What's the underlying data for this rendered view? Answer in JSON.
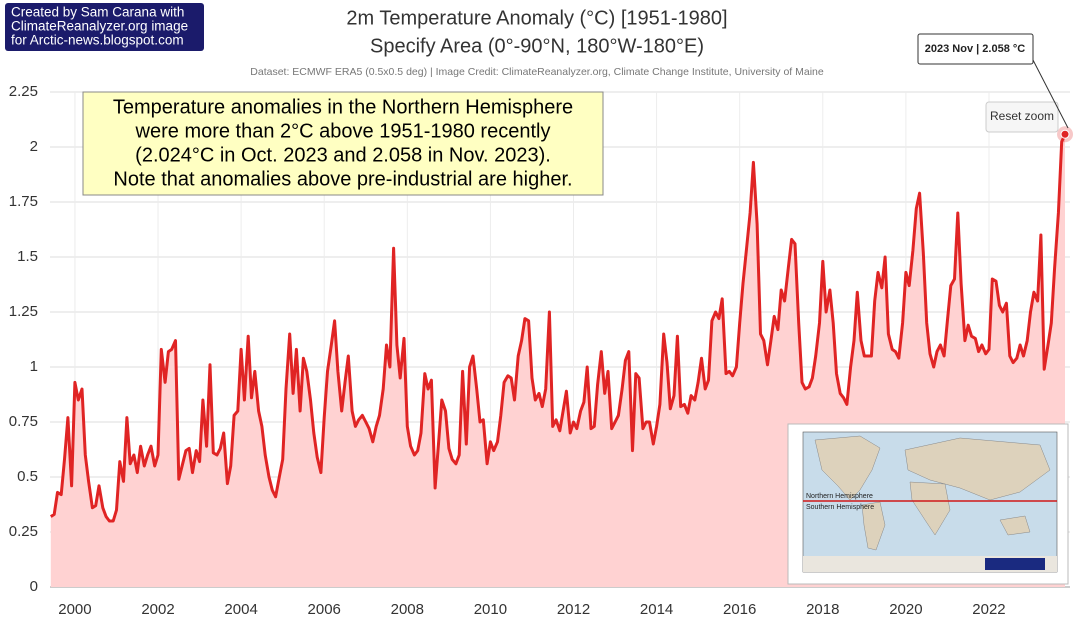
{
  "chart_data": {
    "type": "area",
    "credit_box": [
      "Created by Sam Carana with",
      "ClimateReanalyzer.org image",
      "for Arctic-news.blogspot.com"
    ],
    "title": "2m Temperature Anomaly (°C) [1951-1980]",
    "subtitle": "Specify Area (0°-90°N, 180°W-180°E)",
    "source": "Dataset: ECMWF ERA5 (0.5x0.5 deg) | Image Credit: ClimateReanalyzer.org, Climate Change Institute, University of Maine",
    "annotation": [
      "Temperature anomalies in the Northern Hemisphere",
      "were more than 2°C above 1951-1980 recently",
      "(2.024°C in Oct. 2023 and 2.058 in Nov. 2023).",
      "Note that anomalies above pre-industrial are higher."
    ],
    "tooltip": "2023 Nov | 2.058 °C",
    "button": "Reset zoom",
    "inset_labels": [
      "Northern Hemisphere",
      "Southern Hemisphere"
    ],
    "color": "#e02424",
    "fill": "#ffd2d2",
    "grid": true,
    "xlim": [
      1999.4,
      2023.95
    ],
    "xticks": [
      2000,
      2002,
      2004,
      2006,
      2008,
      2010,
      2012,
      2014,
      2016,
      2018,
      2020,
      2022
    ],
    "ylim": [
      0,
      2.25
    ],
    "yticks": [
      0,
      0.25,
      0.5,
      0.75,
      1,
      1.25,
      1.5,
      1.75,
      2,
      2.25
    ],
    "x": [
      1999.42,
      1999.5,
      1999.58,
      1999.67,
      1999.75,
      1999.83,
      1999.92,
      2000,
      2000.08,
      2000.17,
      2000.25,
      2000.33,
      2000.42,
      2000.5,
      2000.58,
      2000.67,
      2000.75,
      2000.83,
      2000.92,
      2001,
      2001.08,
      2001.17,
      2001.25,
      2001.33,
      2001.42,
      2001.5,
      2001.58,
      2001.67,
      2001.75,
      2001.83,
      2001.92,
      2002,
      2002.08,
      2002.17,
      2002.25,
      2002.33,
      2002.42,
      2002.5,
      2002.58,
      2002.67,
      2002.75,
      2002.83,
      2002.92,
      2003,
      2003.08,
      2003.17,
      2003.25,
      2003.33,
      2003.42,
      2003.5,
      2003.58,
      2003.67,
      2003.75,
      2003.83,
      2003.92,
      2004,
      2004.08,
      2004.17,
      2004.25,
      2004.33,
      2004.42,
      2004.5,
      2004.58,
      2004.67,
      2004.75,
      2004.83,
      2004.92,
      2005,
      2005.08,
      2005.17,
      2005.25,
      2005.33,
      2005.42,
      2005.5,
      2005.58,
      2005.67,
      2005.75,
      2005.83,
      2005.92,
      2006,
      2006.08,
      2006.17,
      2006.25,
      2006.33,
      2006.42,
      2006.5,
      2006.58,
      2006.67,
      2006.75,
      2006.83,
      2006.92,
      2007,
      2007.08,
      2007.17,
      2007.25,
      2007.33,
      2007.42,
      2007.5,
      2007.58,
      2007.67,
      2007.75,
      2007.83,
      2007.92,
      2008,
      2008.08,
      2008.17,
      2008.25,
      2008.33,
      2008.42,
      2008.5,
      2008.58,
      2008.67,
      2008.75,
      2008.83,
      2008.92,
      2009,
      2009.08,
      2009.17,
      2009.25,
      2009.33,
      2009.42,
      2009.5,
      2009.58,
      2009.67,
      2009.75,
      2009.83,
      2009.92,
      2010,
      2010.08,
      2010.17,
      2010.25,
      2010.33,
      2010.42,
      2010.5,
      2010.58,
      2010.67,
      2010.75,
      2010.83,
      2010.92,
      2011,
      2011.08,
      2011.17,
      2011.25,
      2011.33,
      2011.42,
      2011.5,
      2011.58,
      2011.67,
      2011.75,
      2011.83,
      2011.92,
      2012,
      2012.08,
      2012.17,
      2012.25,
      2012.33,
      2012.42,
      2012.5,
      2012.58,
      2012.67,
      2012.75,
      2012.83,
      2012.92,
      2013,
      2013.08,
      2013.17,
      2013.25,
      2013.33,
      2013.42,
      2013.5,
      2013.58,
      2013.67,
      2013.75,
      2013.83,
      2013.92,
      2014,
      2014.08,
      2014.17,
      2014.25,
      2014.33,
      2014.42,
      2014.5,
      2014.58,
      2014.67,
      2014.75,
      2014.83,
      2014.92,
      2015,
      2015.08,
      2015.17,
      2015.25,
      2015.33,
      2015.42,
      2015.5,
      2015.58,
      2015.67,
      2015.75,
      2015.83,
      2015.92,
      2016,
      2016.08,
      2016.17,
      2016.25,
      2016.33,
      2016.42,
      2016.5,
      2016.58,
      2016.67,
      2016.75,
      2016.83,
      2016.92,
      2017,
      2017.08,
      2017.17,
      2017.25,
      2017.33,
      2017.42,
      2017.5,
      2017.58,
      2017.67,
      2017.75,
      2017.83,
      2017.92,
      2018,
      2018.08,
      2018.17,
      2018.25,
      2018.33,
      2018.42,
      2018.5,
      2018.58,
      2018.67,
      2018.75,
      2018.83,
      2018.92,
      2019,
      2019.08,
      2019.17,
      2019.25,
      2019.33,
      2019.42,
      2019.5,
      2019.58,
      2019.67,
      2019.75,
      2019.83,
      2019.92,
      2020,
      2020.08,
      2020.17,
      2020.25,
      2020.33,
      2020.42,
      2020.5,
      2020.58,
      2020.67,
      2020.75,
      2020.83,
      2020.92,
      2021,
      2021.08,
      2021.17,
      2021.25,
      2021.33,
      2021.42,
      2021.5,
      2021.58,
      2021.67,
      2021.75,
      2021.83,
      2021.92,
      2022,
      2022.08,
      2022.17,
      2022.25,
      2022.33,
      2022.42,
      2022.5,
      2022.58,
      2022.67,
      2022.75,
      2022.83,
      2022.92,
      2023,
      2023.08,
      2023.17,
      2023.25,
      2023.33,
      2023.42,
      2023.5,
      2023.58,
      2023.67,
      2023.75,
      2023.83
    ],
    "values": [
      0.32,
      0.33,
      0.43,
      0.42,
      0.58,
      0.77,
      0.46,
      0.93,
      0.85,
      0.9,
      0.6,
      0.48,
      0.36,
      0.37,
      0.46,
      0.36,
      0.32,
      0.3,
      0.3,
      0.35,
      0.57,
      0.48,
      0.77,
      0.56,
      0.6,
      0.52,
      0.64,
      0.55,
      0.6,
      0.64,
      0.55,
      0.6,
      1.08,
      0.93,
      1.07,
      1.08,
      1.12,
      0.49,
      0.55,
      0.62,
      0.63,
      0.52,
      0.62,
      0.57,
      0.85,
      0.64,
      1.01,
      0.61,
      0.6,
      0.63,
      0.7,
      0.47,
      0.55,
      0.78,
      0.8,
      1.08,
      0.85,
      1.14,
      0.86,
      0.98,
      0.8,
      0.73,
      0.6,
      0.5,
      0.44,
      0.41,
      0.5,
      0.58,
      0.9,
      1.15,
      0.88,
      1.08,
      0.8,
      1.04,
      0.98,
      0.85,
      0.7,
      0.59,
      0.52,
      0.77,
      0.98,
      1.1,
      1.21,
      0.98,
      0.8,
      0.93,
      1.05,
      0.8,
      0.73,
      0.76,
      0.78,
      0.75,
      0.72,
      0.66,
      0.73,
      0.78,
      0.9,
      1.1,
      1.0,
      1.54,
      1.1,
      0.95,
      1.13,
      0.73,
      0.64,
      0.6,
      0.62,
      0.7,
      0.97,
      0.9,
      0.94,
      0.45,
      0.65,
      0.85,
      0.8,
      0.63,
      0.58,
      0.56,
      0.6,
      0.98,
      0.65,
      1.0,
      1.05,
      0.9,
      0.75,
      0.76,
      0.56,
      0.66,
      0.62,
      0.66,
      0.78,
      0.93,
      0.96,
      0.95,
      0.85,
      1.05,
      1.12,
      1.22,
      1.21,
      0.95,
      0.85,
      0.88,
      0.82,
      0.9,
      1.25,
      0.73,
      0.76,
      0.71,
      0.8,
      0.89,
      0.7,
      0.75,
      0.72,
      0.8,
      0.84,
      1.0,
      0.72,
      0.73,
      0.92,
      1.07,
      0.88,
      0.98,
      0.72,
      0.75,
      0.78,
      0.9,
      1.03,
      1.07,
      0.62,
      0.97,
      0.95,
      0.72,
      0.75,
      0.75,
      0.65,
      0.73,
      0.83,
      1.15,
      1.02,
      0.81,
      0.87,
      1.14,
      0.82,
      0.83,
      0.79,
      0.87,
      0.85,
      0.93,
      1.04,
      0.9,
      0.94,
      1.21,
      1.25,
      1.22,
      1.31,
      0.97,
      0.98,
      0.96,
      1.0,
      1.2,
      1.38,
      1.55,
      1.7,
      1.93,
      1.65,
      1.15,
      1.12,
      1.01,
      1.12,
      1.23,
      1.17,
      1.35,
      1.3,
      1.45,
      1.58,
      1.56,
      1.2,
      0.93,
      0.9,
      0.91,
      0.95,
      1.05,
      1.2,
      1.48,
      1.25,
      1.35,
      1.2,
      0.97,
      0.88,
      0.86,
      0.83,
      1.0,
      1.12,
      1.34,
      1.12,
      1.05,
      1.05,
      1.05,
      1.3,
      1.43,
      1.36,
      1.5,
      1.15,
      1.08,
      1.07,
      1.04,
      1.2,
      1.43,
      1.37,
      1.53,
      1.72,
      1.79,
      1.52,
      1.2,
      1.06,
      1.0,
      1.07,
      1.1,
      1.05,
      1.21,
      1.37,
      1.4,
      1.7,
      1.38,
      1.12,
      1.19,
      1.14,
      1.13,
      1.07,
      1.1,
      1.06,
      1.08,
      1.4,
      1.39,
      1.28,
      1.25,
      1.29,
      1.05,
      1.02,
      1.04,
      1.1,
      1.05,
      1.12,
      1.25,
      1.34,
      1.3,
      1.6,
      0.99,
      1.1,
      1.2,
      1.45,
      1.7,
      2.024,
      2.058
    ]
  }
}
